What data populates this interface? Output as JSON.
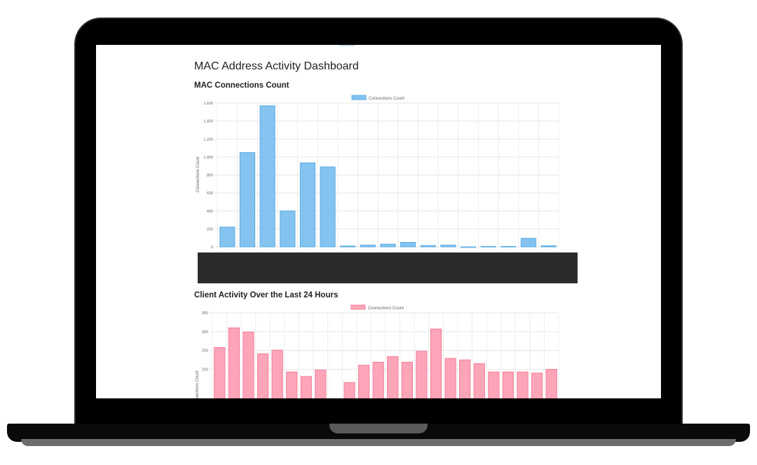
{
  "page": {
    "title": "MAC Address Activity Dashboard"
  },
  "colors": {
    "blue_fill": "#84c3f0",
    "blue_stroke": "#5aaee6",
    "pink_fill": "#fca4b8",
    "pink_stroke": "#f57f9a"
  },
  "chart_data": [
    {
      "type": "bar",
      "heading": "MAC Connections Count",
      "legend": "Connections Count",
      "ylabel": "Connections Count",
      "ylim": [
        0,
        1600
      ],
      "yticks": [
        "0",
        "200",
        "400",
        "600",
        "800",
        "1,000",
        "1,200",
        "1,400",
        "1,600"
      ],
      "values": [
        220,
        1050,
        1570,
        400,
        935,
        890,
        10,
        20,
        30,
        50,
        15,
        20,
        0,
        5,
        5,
        95,
        12
      ],
      "grid": true,
      "legend_position": "top"
    },
    {
      "type": "bar",
      "heading": "Client Activity Over the Last 24 Hours",
      "legend": "Connections Count",
      "ylabel": "Connections Count",
      "ylim": [
        0,
        350
      ],
      "yticks": [
        "350",
        "300",
        "250",
        "200"
      ],
      "values": [
        258,
        310,
        299,
        241,
        251,
        193,
        181,
        198,
        120,
        165,
        211,
        219,
        234,
        219,
        248,
        307,
        229,
        225,
        215,
        193,
        193,
        193,
        190,
        200
      ],
      "grid": true,
      "legend_position": "top"
    }
  ]
}
